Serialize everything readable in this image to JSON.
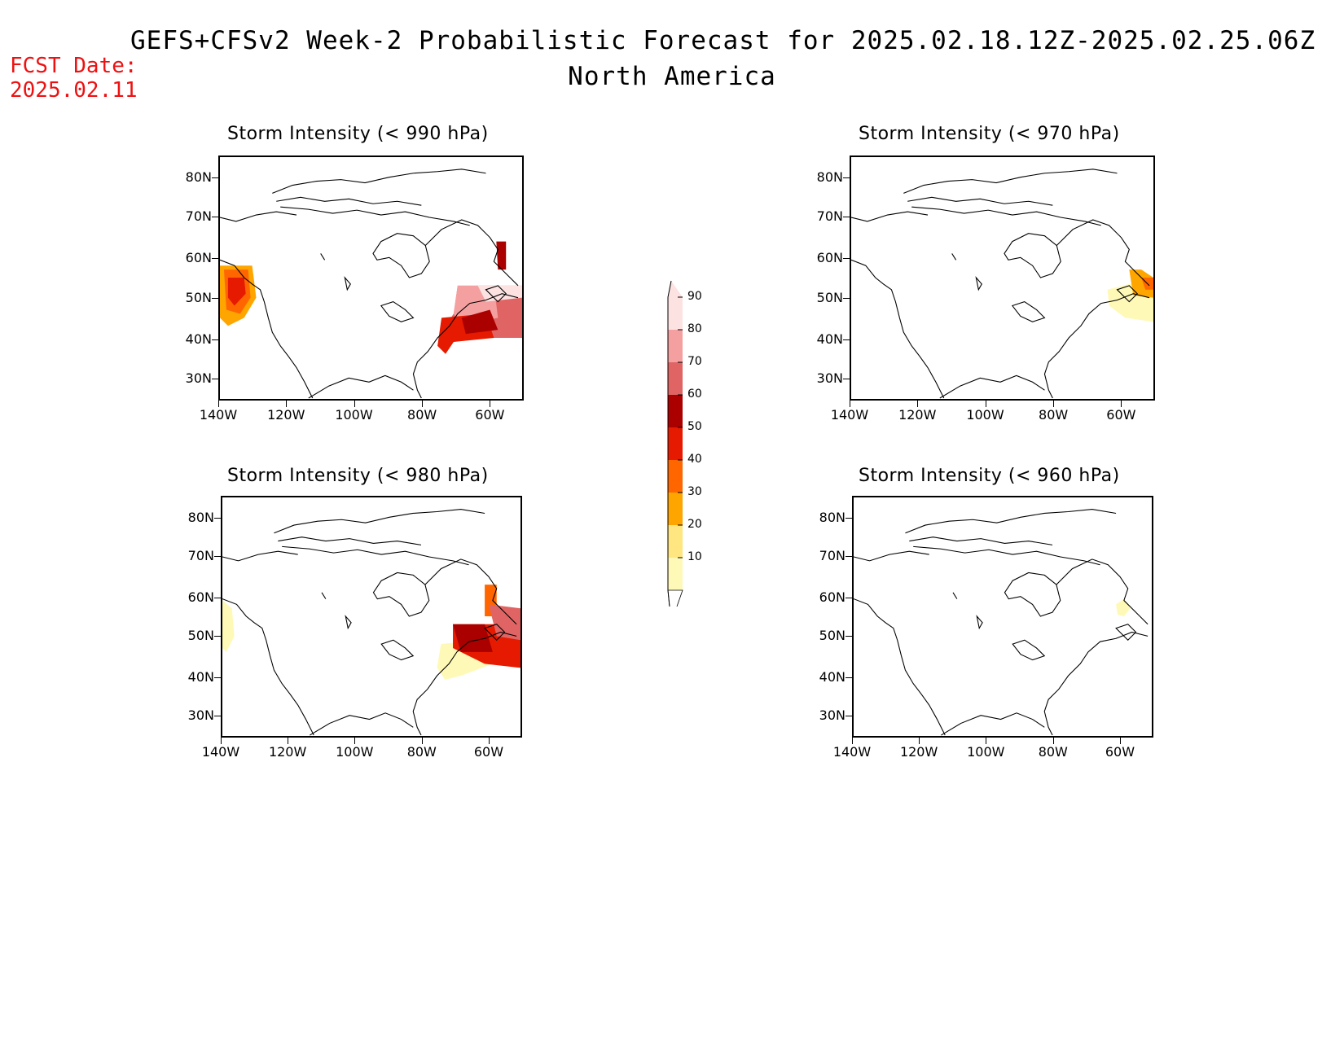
{
  "title_line1": "GEFS+CFSv2 Week-2 Probabilistic Forecast for 2025.02.18.12Z-2025.02.25.06Z",
  "title_line2": "North America",
  "fcst_label": "FCST Date:",
  "fcst_date": "2025.02.11",
  "lat_labels": [
    "80N",
    "70N",
    "60N",
    "50N",
    "40N",
    "30N"
  ],
  "lon_labels": [
    "140W",
    "120W",
    "100W",
    "80W",
    "60W"
  ],
  "panels": [
    {
      "title": "Storm Intensity (< 990 hPa)"
    },
    {
      "title": "Storm Intensity (< 970 hPa)"
    },
    {
      "title": "Storm Intensity (< 980 hPa)"
    },
    {
      "title": "Storm Intensity (< 960 hPa)"
    }
  ],
  "colorbar": {
    "levels": [
      "10",
      "20",
      "30",
      "40",
      "50",
      "60",
      "70",
      "80",
      "90"
    ],
    "colors": [
      "#fff9b8",
      "#ffe680",
      "#ffa500",
      "#ff6600",
      "#e61a00",
      "#aa0000",
      "#e06464",
      "#f5a0a0",
      "#fde2e2"
    ]
  },
  "colors": {
    "fcst_date": "#ee1111"
  }
}
